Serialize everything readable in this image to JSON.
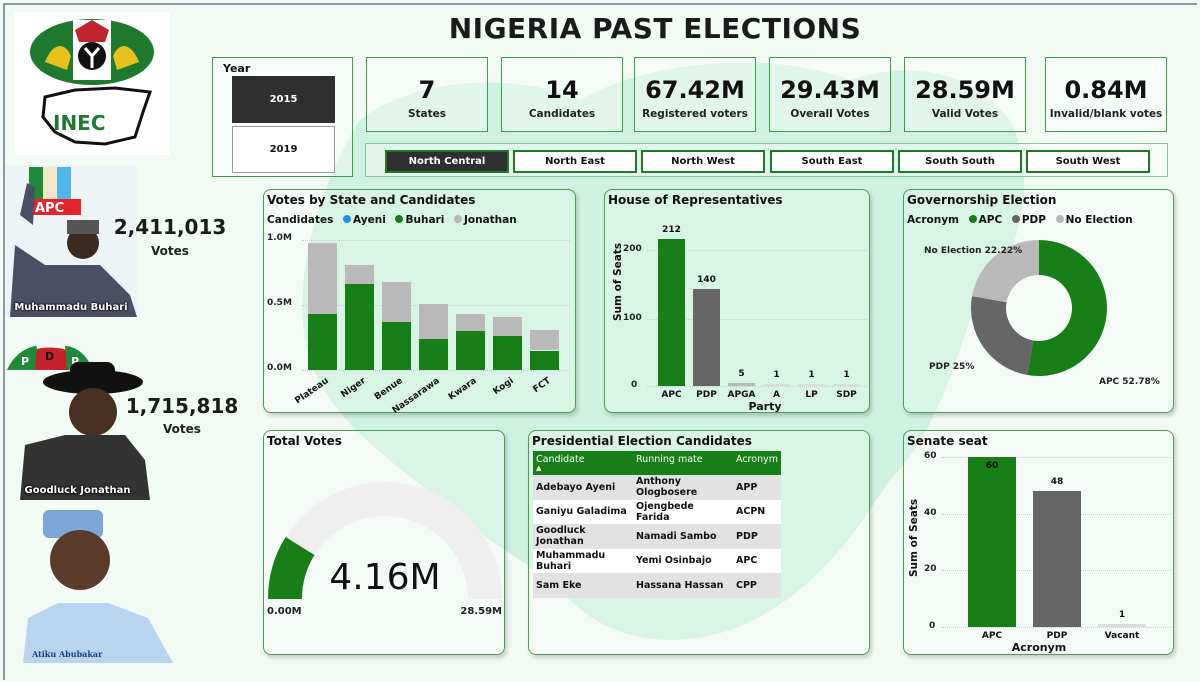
{
  "header": {
    "title": "NIGERIA PAST ELECTIONS"
  },
  "logo": {
    "org": "INEC"
  },
  "year_slicer": {
    "label": "Year",
    "options": [
      {
        "label": "2015",
        "selected": true
      },
      {
        "label": "2019",
        "selected": false
      }
    ]
  },
  "kpis": [
    {
      "value": "7",
      "label": "States"
    },
    {
      "value": "14",
      "label": "Candidates"
    },
    {
      "value": "67.42M",
      "label": "Registered voters"
    },
    {
      "value": "29.43M",
      "label": "Overall Votes"
    },
    {
      "value": "28.59M",
      "label": "Valid Votes"
    },
    {
      "value": "0.84M",
      "label": "Invalid/blank votes"
    }
  ],
  "regions": [
    {
      "label": "North Central",
      "selected": true
    },
    {
      "label": "North East",
      "selected": false
    },
    {
      "label": "North West",
      "selected": false
    },
    {
      "label": "South East",
      "selected": false
    },
    {
      "label": "South South",
      "selected": false
    },
    {
      "label": "South West",
      "selected": false
    }
  ],
  "candidates": [
    {
      "name": "Muhammadu Buhari",
      "party": "APC",
      "votes": "2,411,013",
      "votes_label": "Votes"
    },
    {
      "name": "Goodluck Jonathan",
      "party": "PDP",
      "votes": "1,715,818",
      "votes_label": "Votes"
    },
    {
      "name": "Atiku Abubakar",
      "party": "PDP"
    }
  ],
  "colors": {
    "green": "#187e18",
    "dark_gray": "#666666",
    "light_gray": "#b9b9b9",
    "blue": "#1e90e8",
    "card_border": "#4f9a55",
    "map": "#c9f0dc"
  },
  "total_votes": {
    "title": "Total Votes",
    "value": "4.16M",
    "min": "0.00M",
    "max": "28.59M"
  },
  "presidential_table": {
    "title": "Presidential Election Candidates",
    "columns": [
      "Candidate",
      "Running mate",
      "Acronym"
    ],
    "rows": [
      [
        "Adebayo Ayeni",
        "Anthony Ologbosere",
        "APP"
      ],
      [
        "Ganiyu Galadima",
        "Ojengbede Farida",
        "ACPN"
      ],
      [
        "Goodluck Jonathan",
        "Namadi Sambo",
        "PDP"
      ],
      [
        "Muhammadu Buhari",
        "Yemi Osinbajo",
        "APC"
      ],
      [
        "Sam Eke",
        "Hassana Hassan",
        "CPP"
      ]
    ]
  },
  "chart_data": [
    {
      "id": "votes_by_state",
      "type": "bar",
      "stacked": true,
      "title": "Votes by State and Candidates",
      "legend_title": "Candidates",
      "legend": [
        "Ayeni",
        "Buhari",
        "Jonathan"
      ],
      "categories": [
        "Plateau",
        "Niger",
        "Benue",
        "Nassarawa",
        "Kwara",
        "Kogi",
        "FCT"
      ],
      "series": [
        {
          "name": "Ayeni",
          "values": [
            0,
            0,
            0,
            0,
            0,
            0,
            0
          ]
        },
        {
          "name": "Buhari",
          "values": [
            0.43,
            0.66,
            0.37,
            0.24,
            0.3,
            0.26,
            0.15
          ]
        },
        {
          "name": "Jonathan",
          "values": [
            0.55,
            0.15,
            0.31,
            0.27,
            0.13,
            0.15,
            0.16
          ]
        }
      ],
      "yticks": [
        "0.0M",
        "0.5M",
        "1.0M"
      ],
      "ylim": [
        0,
        1.0
      ],
      "xlabel": "",
      "ylabel": ""
    },
    {
      "id": "house_of_reps",
      "type": "bar",
      "title": "House of Representatives",
      "categories": [
        "APC",
        "PDP",
        "APGA",
        "A",
        "LP",
        "SDP"
      ],
      "values": [
        212,
        140,
        5,
        1,
        1,
        1
      ],
      "yticks": [
        "0",
        "100",
        "200"
      ],
      "ylim": [
        0,
        230
      ],
      "xlabel": "Party",
      "ylabel": "Sum of Seats"
    },
    {
      "id": "governorship",
      "type": "pie",
      "donut": true,
      "title": "Governorship Election",
      "legend_title": "Acronym",
      "legend": [
        "APC",
        "PDP",
        "No Election"
      ],
      "categories": [
        "APC",
        "PDP",
        "No Election"
      ],
      "values": [
        52.78,
        25,
        22.22
      ],
      "labels": [
        "APC 52.78%",
        "PDP 25%",
        "No Election 22.22%"
      ]
    },
    {
      "id": "senate",
      "type": "bar",
      "title": "Senate seat",
      "categories": [
        "APC",
        "PDP",
        "Vacant"
      ],
      "values": [
        60,
        48,
        1
      ],
      "yticks": [
        "0",
        "20",
        "40",
        "60"
      ],
      "ylim": [
        0,
        60
      ],
      "xlabel": "Acronym",
      "ylabel": "Sum of Seats"
    }
  ]
}
